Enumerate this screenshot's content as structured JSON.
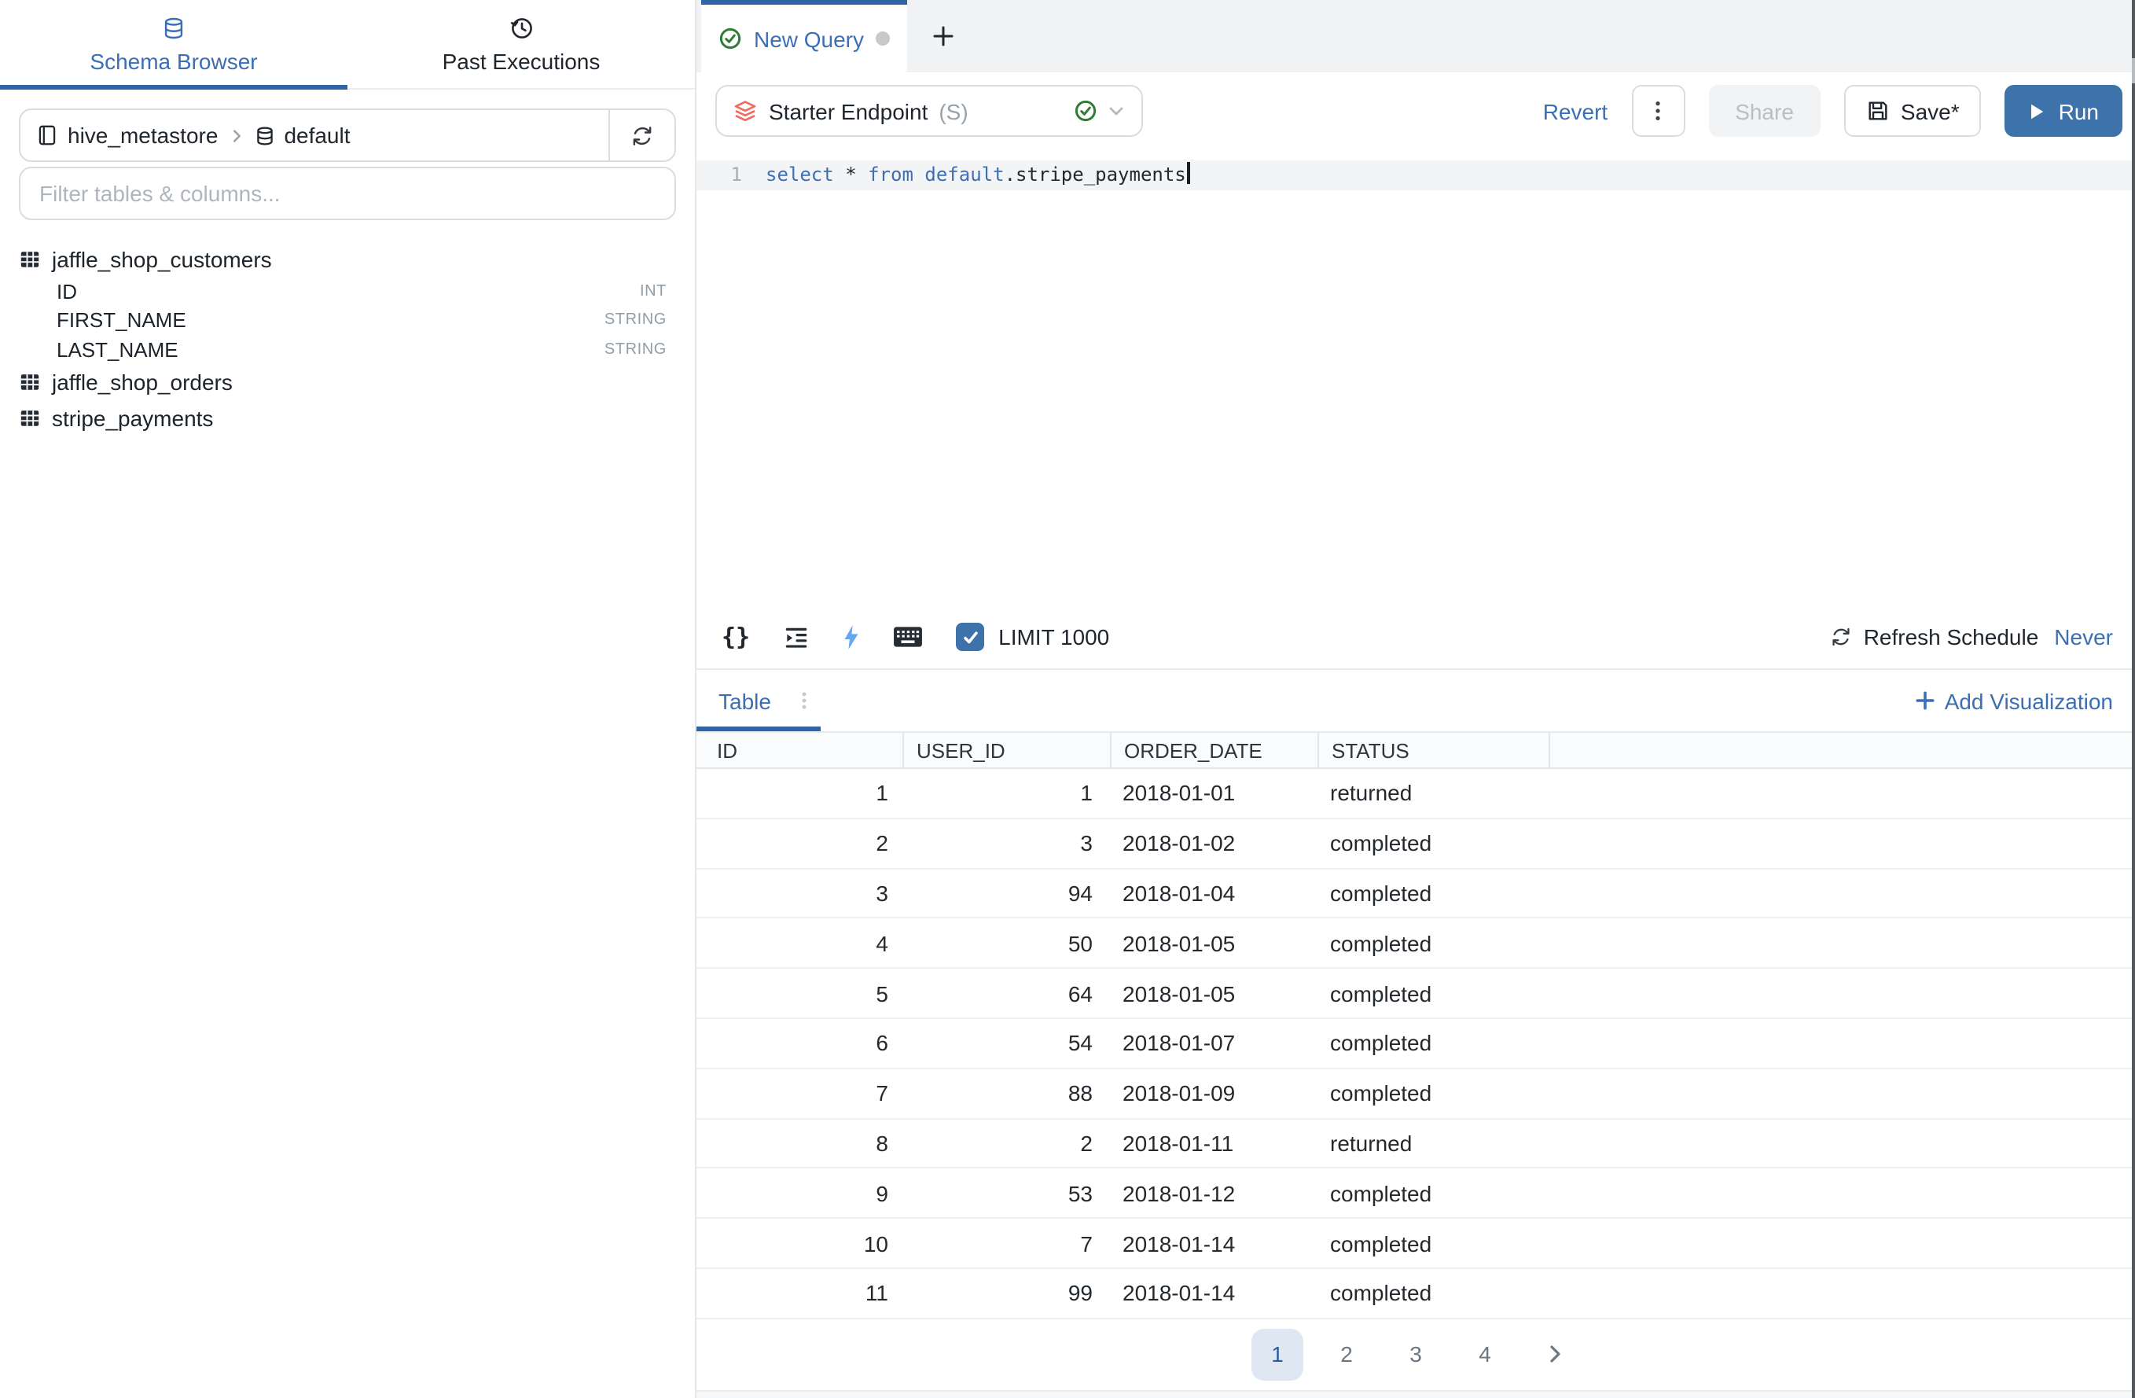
{
  "theme": {
    "accent": "#3c6eb4",
    "accent_dark": "#2f65a7",
    "run_button": "#3d72ab",
    "success_green": "#2e7d32",
    "endpoint_icon_coral": "#f4695e",
    "bolt_blue": "#64a8ef",
    "keyword_blue": "#3f6fb3"
  },
  "sidebar": {
    "tabs": [
      {
        "label": "Schema Browser",
        "icon": "database-icon",
        "active": true
      },
      {
        "label": "Past Executions",
        "icon": "history-clock-icon",
        "active": false
      }
    ],
    "breadcrumb": {
      "catalog": "hive_metastore",
      "schema": "default"
    },
    "filter_placeholder": "Filter tables & columns...",
    "tables": [
      {
        "name": "jaffle_shop_customers",
        "columns": [
          {
            "name": "ID",
            "type": "INT"
          },
          {
            "name": "FIRST_NAME",
            "type": "STRING"
          },
          {
            "name": "LAST_NAME",
            "type": "STRING"
          }
        ]
      },
      {
        "name": "jaffle_shop_orders",
        "columns": []
      },
      {
        "name": "stripe_payments",
        "columns": []
      }
    ]
  },
  "tab_bar": {
    "active_tab_label": "New Query",
    "new_tab_button": "+"
  },
  "toolbar": {
    "endpoint": {
      "name": "Starter Endpoint",
      "size_label": "(S)"
    },
    "revert_label": "Revert",
    "share_label": "Share",
    "save_label": "Save*",
    "run_label": "Run"
  },
  "editor": {
    "line_number": "1",
    "code_text": "select * from default.stripe_payments",
    "tokens": [
      {
        "text": "select",
        "type": "kw"
      },
      {
        "text": " ",
        "type": "pl"
      },
      {
        "text": "*",
        "type": "pl"
      },
      {
        "text": " ",
        "type": "pl"
      },
      {
        "text": "from",
        "type": "kw"
      },
      {
        "text": " ",
        "type": "pl"
      },
      {
        "text": "default",
        "type": "kw"
      },
      {
        "text": ".stripe_payments",
        "type": "pl"
      }
    ]
  },
  "editor_toolbar": {
    "limit_checked": true,
    "limit_label": "LIMIT 1000",
    "refresh_schedule_label": "Refresh Schedule",
    "refresh_schedule_value": "Never"
  },
  "results": {
    "tab_label": "Table",
    "add_visualization_label": "Add Visualization",
    "columns": [
      "ID",
      "USER_ID",
      "ORDER_DATE",
      "STATUS"
    ],
    "rows": [
      {
        "id": "1",
        "user_id": "1",
        "order_date": "2018-01-01",
        "status": "returned"
      },
      {
        "id": "2",
        "user_id": "3",
        "order_date": "2018-01-02",
        "status": "completed"
      },
      {
        "id": "3",
        "user_id": "94",
        "order_date": "2018-01-04",
        "status": "completed"
      },
      {
        "id": "4",
        "user_id": "50",
        "order_date": "2018-01-05",
        "status": "completed"
      },
      {
        "id": "5",
        "user_id": "64",
        "order_date": "2018-01-05",
        "status": "completed"
      },
      {
        "id": "6",
        "user_id": "54",
        "order_date": "2018-01-07",
        "status": "completed"
      },
      {
        "id": "7",
        "user_id": "88",
        "order_date": "2018-01-09",
        "status": "completed"
      },
      {
        "id": "8",
        "user_id": "2",
        "order_date": "2018-01-11",
        "status": "returned"
      },
      {
        "id": "9",
        "user_id": "53",
        "order_date": "2018-01-12",
        "status": "completed"
      },
      {
        "id": "10",
        "user_id": "7",
        "order_date": "2018-01-14",
        "status": "completed"
      },
      {
        "id": "11",
        "user_id": "99",
        "order_date": "2018-01-14",
        "status": "completed"
      }
    ],
    "pagination": {
      "pages": [
        "1",
        "2",
        "3",
        "4"
      ],
      "active_page": "1"
    }
  }
}
